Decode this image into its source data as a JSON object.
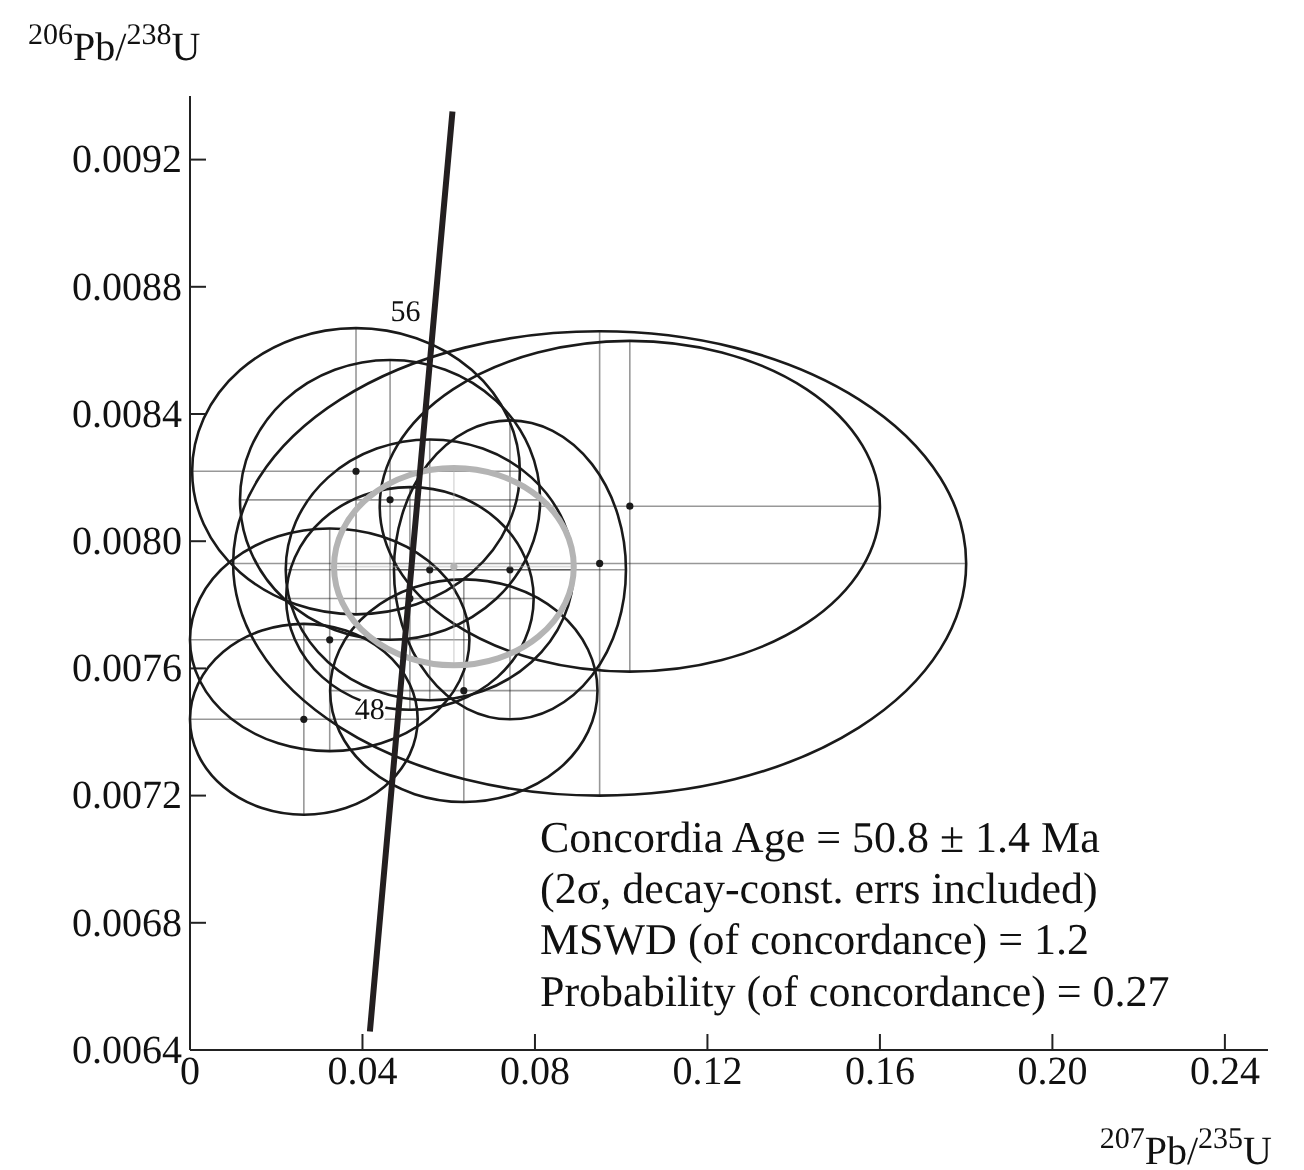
{
  "chart_data": {
    "type": "scatter",
    "xlabel": "$^{207}$Pb/$^{235}$U",
    "ylabel": "$^{206}$Pb/$^{238}$U",
    "xlim": [
      0,
      0.25
    ],
    "ylim": [
      0.0064,
      0.0094
    ],
    "xticks": [
      0,
      0.04,
      0.08,
      0.12,
      0.16,
      {
        "value": 0.2,
        "label": "0.20"
      },
      0.24
    ],
    "yticks": [
      0.0064,
      0.0068,
      0.0072,
      0.0076,
      {
        "value": 0.008,
        "label": "0.0080"
      },
      0.0084,
      0.0088,
      0.0092
    ],
    "series": [
      {
        "color": "#1a1a1a",
        "x": [
          0.0385,
          0.102,
          0.095,
          0.0324,
          0.0264,
          0.051,
          0.0556,
          0.0635,
          0.0742,
          0.0464
        ],
        "values": [
          0.00822,
          0.00811,
          0.00793,
          0.00769,
          0.00744,
          0.00782,
          0.00791,
          0.00753,
          0.00791,
          0.00813
        ],
        "xerrors": [
          0.038,
          0.058,
          0.085,
          0.0324,
          0.0264,
          0.0287,
          0.0334,
          0.031,
          0.0269,
          0.0348
        ],
        "errors": [
          0.00045,
          0.00052,
          0.00073,
          0.00035,
          0.0003,
          0.00035,
          0.00041,
          0.00035,
          0.00047,
          0.00044
        ]
      },
      {
        "color": "#b4b4b4",
        "x": [
          0.0612
        ],
        "values": [
          0.00792
        ],
        "xerrors": [
          0.0278
        ],
        "errors": [
          0.00031
        ]
      },
      {
        "type": "line",
        "color": "#231f20",
        "x": [
          0.04172,
          0.04429,
          0.04841,
          0.05255,
          0.0567,
          0.06087
        ],
        "values": [
          0.006458,
          0.006849,
          0.007474,
          0.008099,
          0.008725,
          0.009351
        ]
      }
    ],
    "annotations": [
      {
        "text": "56",
        "x": 0.0567,
        "y": 0.008725
      },
      {
        "text": "48",
        "x": 0.04841,
        "y": 0.007474
      },
      "Concordia Age = 50.8 ± 1.4 Ma",
      "(2σ, decay-const. errs included)",
      "MSWD (of concordance) = 1.2",
      "Probability (of concordance) = 0.27"
    ]
  }
}
